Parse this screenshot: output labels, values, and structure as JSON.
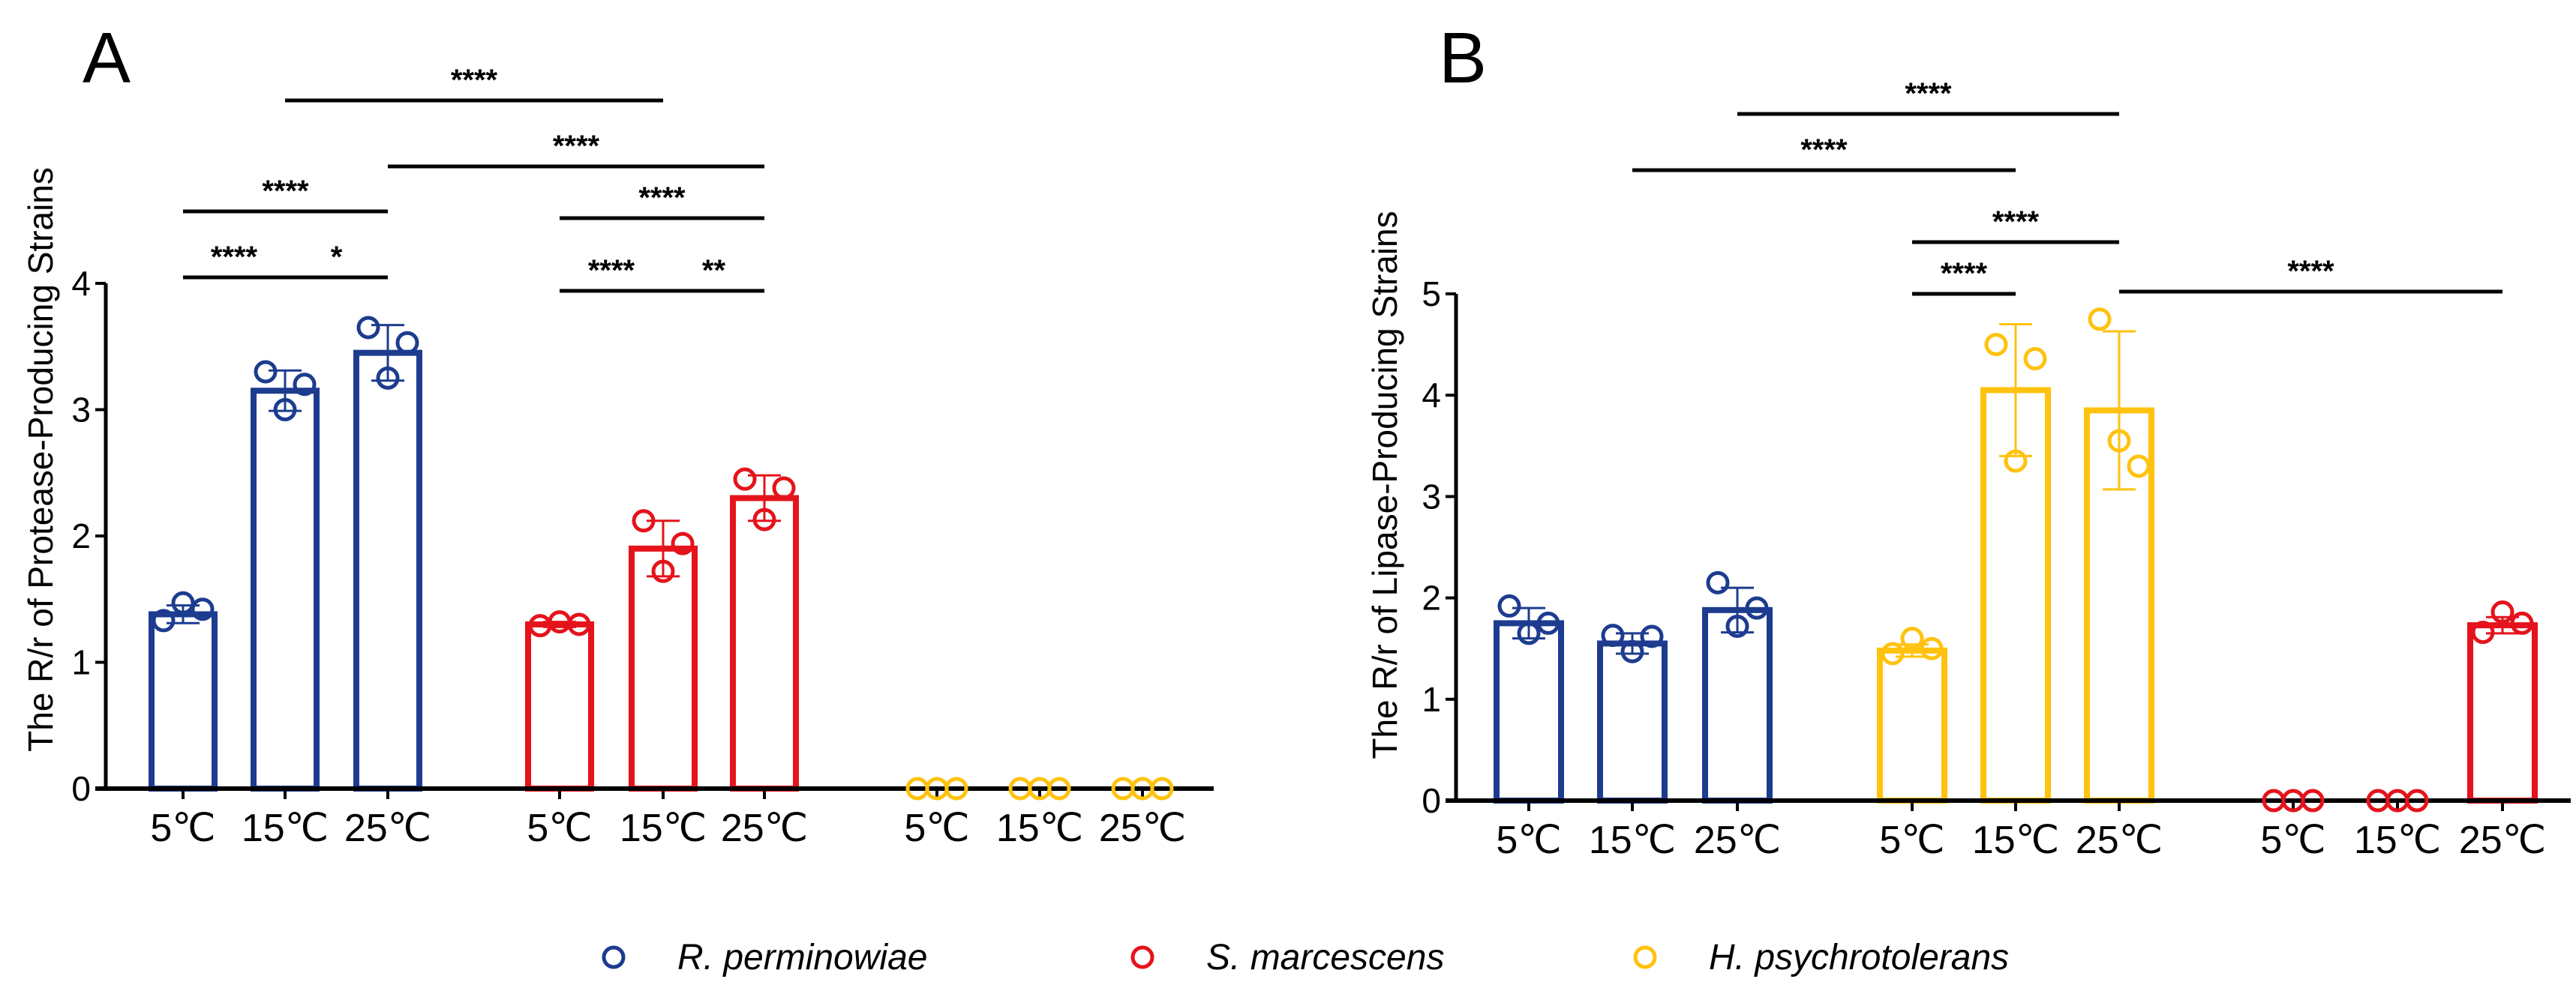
{
  "colors": {
    "R. perminowiae": "#1d3c8f",
    "S. marcescens": "#e5131b",
    "H. psychrotolerans": "#ffc20e",
    "axis": "#000000"
  },
  "legend": {
    "items": [
      {
        "label": "R. perminowiae",
        "color": "#1d3c8f"
      },
      {
        "label": "S. marcescens",
        "color": "#e5131b"
      },
      {
        "label": "H. psychrotolerans",
        "color": "#ffc20e"
      }
    ],
    "placement": "bottom-center"
  },
  "chart_data": [
    {
      "type": "bar",
      "panel_label": "A",
      "ylabel": "The R/r of Protease-Producing Strains",
      "xlabel": "",
      "ylim": [
        0,
        4
      ],
      "yticks": [
        "0",
        "1",
        "2",
        "3",
        "4"
      ],
      "categories": [
        "5℃",
        "15℃",
        "25℃",
        "5℃",
        "15℃",
        "25℃",
        "5℃",
        "15℃",
        "25℃"
      ],
      "groups": [
        "R. perminowiae",
        "R. perminowiae",
        "R. perminowiae",
        "S. marcescens",
        "S. marcescens",
        "S. marcescens",
        "H. psychrotolerans",
        "H. psychrotolerans",
        "H. psychrotolerans"
      ],
      "values": [
        1.38,
        3.15,
        3.45,
        1.3,
        1.9,
        2.3,
        0,
        0,
        0
      ],
      "errors": [
        0.07,
        0.16,
        0.22,
        0.02,
        0.22,
        0.18,
        0,
        0,
        0
      ],
      "points": [
        [
          1.33,
          1.47,
          1.42
        ],
        [
          3.3,
          3.0,
          3.2
        ],
        [
          3.65,
          3.25,
          3.53
        ],
        [
          1.29,
          1.32,
          1.3
        ],
        [
          2.12,
          1.72,
          1.94
        ],
        [
          2.45,
          2.13,
          2.38
        ],
        [
          0,
          0,
          0
        ],
        [
          0,
          0,
          0
        ],
        [
          0,
          0,
          0
        ]
      ],
      "significance": [
        {
          "from": 1,
          "to": 4,
          "label": "****"
        },
        {
          "from": 2,
          "to": 5,
          "label": "****"
        },
        {
          "from": 0,
          "to": 2,
          "label": "****"
        },
        {
          "from": 3,
          "to": 5,
          "label": "****"
        },
        {
          "from": 0,
          "to": 1,
          "label": "****"
        },
        {
          "from": 1,
          "to": 2,
          "label": "*"
        },
        {
          "from": 3,
          "to": 4,
          "label": "****"
        },
        {
          "from": 4,
          "to": 5,
          "label": "**"
        }
      ]
    },
    {
      "type": "bar",
      "panel_label": "B",
      "ylabel": "The R/r of Lipase-Producing Strains",
      "xlabel": "",
      "ylim": [
        0,
        5
      ],
      "yticks": [
        "0",
        "1",
        "2",
        "3",
        "4",
        "5"
      ],
      "categories": [
        "5℃",
        "15℃",
        "25℃",
        "5℃",
        "15℃",
        "25℃",
        "5℃",
        "15℃",
        "25℃"
      ],
      "groups": [
        "R. perminowiae",
        "R. perminowiae",
        "R. perminowiae",
        "H. psychrotolerans",
        "H. psychrotolerans",
        "H. psychrotolerans",
        "S. marcescens",
        "S. marcescens",
        "S. marcescens"
      ],
      "values": [
        1.75,
        1.55,
        1.88,
        1.48,
        4.05,
        3.85,
        0,
        0,
        1.73
      ],
      "errors": [
        0.15,
        0.1,
        0.22,
        0.06,
        0.65,
        0.78,
        0,
        0,
        0.08
      ],
      "points": [
        [
          1.92,
          1.65,
          1.75
        ],
        [
          1.63,
          1.47,
          1.62
        ],
        [
          2.15,
          1.72,
          1.9
        ],
        [
          1.45,
          1.6,
          1.5
        ],
        [
          4.5,
          3.35,
          4.36
        ],
        [
          4.75,
          3.55,
          3.3
        ],
        [
          0,
          0,
          0
        ],
        [
          0,
          0,
          0
        ],
        [
          1.66,
          1.86,
          1.75
        ]
      ],
      "significance": [
        {
          "from": 2,
          "to": 5,
          "label": "****"
        },
        {
          "from": 1,
          "to": 4,
          "label": "****"
        },
        {
          "from": 3,
          "to": 5,
          "label": "****"
        },
        {
          "from": 3,
          "to": 4,
          "label": "****"
        },
        {
          "from": 5,
          "to": 8,
          "label": "****"
        }
      ]
    }
  ]
}
